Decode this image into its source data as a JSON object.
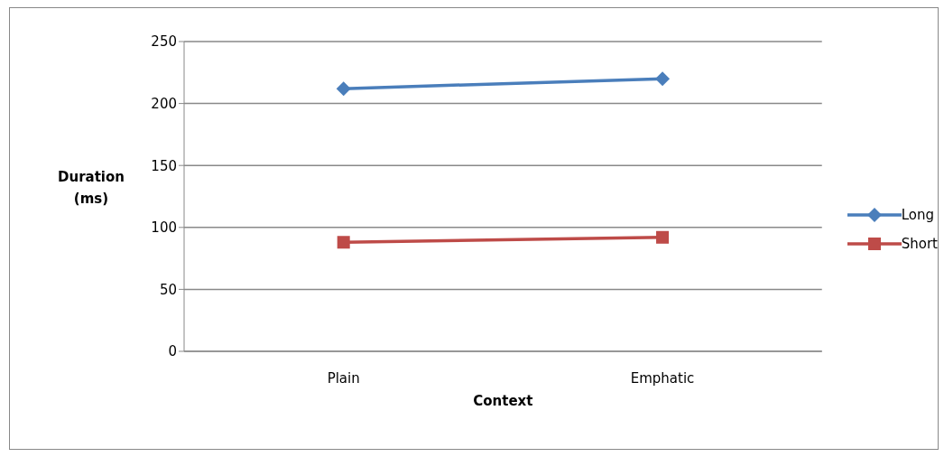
{
  "chart_data": {
    "type": "line",
    "xlabel": "Context",
    "ylabel": "Duration (ms)",
    "categories": [
      "Plain",
      "Emphatic"
    ],
    "series": [
      {
        "name": "Long",
        "color": "#4a7ebb",
        "values": [
          212,
          220
        ],
        "marker": "diamond"
      },
      {
        "name": "Short",
        "color": "#be4b48",
        "values": [
          88,
          92
        ],
        "marker": "square"
      }
    ],
    "ylim": [
      0,
      250
    ],
    "yticks": [
      0,
      50,
      100,
      150,
      200,
      250
    ],
    "grid": "y",
    "legend": "right",
    "line_style": "solid"
  }
}
